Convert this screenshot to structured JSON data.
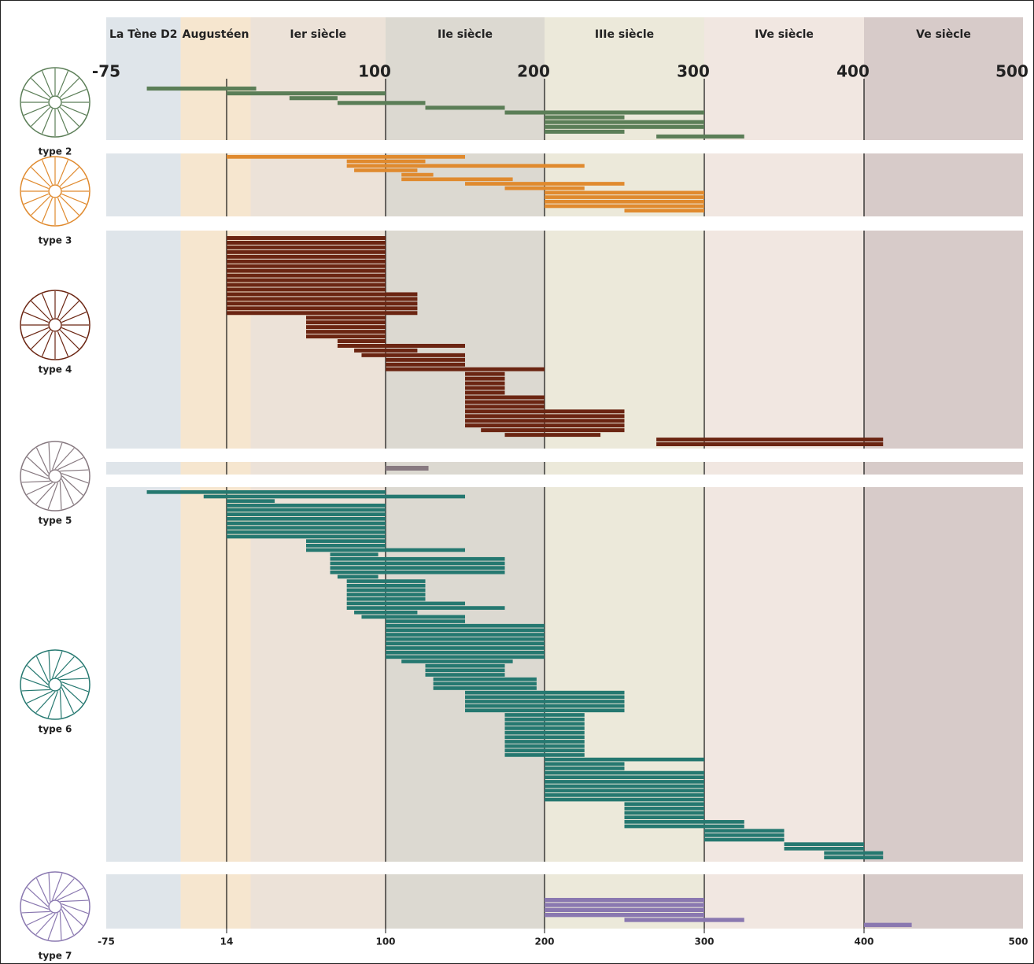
{
  "chart_data": {
    "type": "range-bar",
    "periods": [
      {
        "name": "La Tène D2",
        "start": -75,
        "end": -20,
        "color": "#dfe5ea"
      },
      {
        "name": "Augustéen",
        "start": -20,
        "end": 27,
        "color": "#f6e6cf"
      },
      {
        "name": "Ier siècle",
        "start": 27,
        "end": 100,
        "color": "#ece2d8"
      },
      {
        "name": "IIe siècle",
        "start": 100,
        "end": 200,
        "color": "#dcd9d1"
      },
      {
        "name": "IIIe siècle",
        "start": 200,
        "end": 300,
        "color": "#ece9da"
      },
      {
        "name": "IVe siècle",
        "start": 300,
        "end": 400,
        "color": "#f1e7e1"
      },
      {
        "name": "Ve siècle",
        "start": 400,
        "end": 500,
        "color": "#d7cbc9"
      }
    ],
    "xlim": [
      -75,
      500
    ],
    "xticks": [
      -75,
      14,
      100,
      200,
      300,
      400,
      500
    ],
    "top_xticks": [
      -75,
      100,
      200,
      300,
      400,
      500
    ],
    "series": [
      {
        "name": "type 2",
        "color": "#5b7e57",
        "values": [
          [
            -45,
            30
          ],
          [
            14,
            100
          ],
          [
            48,
            74
          ],
          [
            74,
            125
          ],
          [
            125,
            175
          ],
          [
            175,
            300
          ],
          [
            200,
            250
          ],
          [
            200,
            300
          ],
          [
            200,
            300
          ],
          [
            200,
            250
          ],
          [
            270,
            325
          ]
        ]
      },
      {
        "name": "type 3",
        "color": "#e08a2e",
        "values": [
          [
            14,
            150
          ],
          [
            79,
            125
          ],
          [
            79,
            225
          ],
          [
            83,
            120
          ],
          [
            110,
            130
          ],
          [
            110,
            180
          ],
          [
            150,
            250
          ],
          [
            175,
            225
          ],
          [
            200,
            300
          ],
          [
            200,
            300
          ],
          [
            200,
            300
          ],
          [
            200,
            300
          ],
          [
            250,
            300
          ]
        ]
      },
      {
        "name": "type 4",
        "color": "#6b2512",
        "values": [
          [
            14,
            100
          ],
          [
            14,
            100
          ],
          [
            14,
            100
          ],
          [
            14,
            100
          ],
          [
            14,
            100
          ],
          [
            14,
            100
          ],
          [
            14,
            100
          ],
          [
            14,
            100
          ],
          [
            14,
            100
          ],
          [
            14,
            100
          ],
          [
            14,
            100
          ],
          [
            14,
            100
          ],
          [
            14,
            120
          ],
          [
            14,
            120
          ],
          [
            14,
            120
          ],
          [
            14,
            120
          ],
          [
            14,
            120
          ],
          [
            57,
            100
          ],
          [
            57,
            100
          ],
          [
            57,
            100
          ],
          [
            57,
            100
          ],
          [
            57,
            100
          ],
          [
            74,
            100
          ],
          [
            74,
            150
          ],
          [
            83,
            120
          ],
          [
            87,
            150
          ],
          [
            100,
            150
          ],
          [
            100,
            150
          ],
          [
            100,
            200
          ],
          [
            150,
            175
          ],
          [
            150,
            175
          ],
          [
            150,
            175
          ],
          [
            150,
            175
          ],
          [
            150,
            175
          ],
          [
            150,
            200
          ],
          [
            150,
            200
          ],
          [
            150,
            200
          ],
          [
            150,
            250
          ],
          [
            150,
            250
          ],
          [
            150,
            250
          ],
          [
            150,
            250
          ],
          [
            160,
            250
          ],
          [
            175,
            235
          ],
          [
            270,
            412
          ],
          [
            270,
            412
          ]
        ]
      },
      {
        "name": "type 5",
        "color": "#877980",
        "values": [
          [
            100,
            127
          ]
        ]
      },
      {
        "name": "type 6",
        "color": "#257870",
        "values": [
          [
            -45,
            100
          ],
          [
            -3,
            150
          ],
          [
            14,
            40
          ],
          [
            14,
            100
          ],
          [
            14,
            100
          ],
          [
            14,
            100
          ],
          [
            14,
            100
          ],
          [
            14,
            100
          ],
          [
            14,
            100
          ],
          [
            14,
            100
          ],
          [
            14,
            100
          ],
          [
            57,
            100
          ],
          [
            57,
            100
          ],
          [
            57,
            150
          ],
          [
            70,
            96
          ],
          [
            70,
            175
          ],
          [
            70,
            175
          ],
          [
            70,
            175
          ],
          [
            70,
            175
          ],
          [
            74,
            96
          ],
          [
            79,
            125
          ],
          [
            79,
            125
          ],
          [
            79,
            125
          ],
          [
            79,
            125
          ],
          [
            79,
            125
          ],
          [
            79,
            150
          ],
          [
            79,
            175
          ],
          [
            83,
            120
          ],
          [
            87,
            150
          ],
          [
            100,
            150
          ],
          [
            100,
            200
          ],
          [
            100,
            200
          ],
          [
            100,
            200
          ],
          [
            100,
            200
          ],
          [
            100,
            200
          ],
          [
            100,
            200
          ],
          [
            100,
            200
          ],
          [
            100,
            200
          ],
          [
            110,
            180
          ],
          [
            125,
            175
          ],
          [
            125,
            175
          ],
          [
            125,
            175
          ],
          [
            130,
            195
          ],
          [
            130,
            195
          ],
          [
            130,
            195
          ],
          [
            150,
            250
          ],
          [
            150,
            250
          ],
          [
            150,
            250
          ],
          [
            150,
            250
          ],
          [
            150,
            250
          ],
          [
            175,
            225
          ],
          [
            175,
            225
          ],
          [
            175,
            225
          ],
          [
            175,
            225
          ],
          [
            175,
            225
          ],
          [
            175,
            225
          ],
          [
            175,
            225
          ],
          [
            175,
            225
          ],
          [
            175,
            225
          ],
          [
            175,
            225
          ],
          [
            200,
            300
          ],
          [
            200,
            250
          ],
          [
            200,
            250
          ],
          [
            200,
            300
          ],
          [
            200,
            300
          ],
          [
            200,
            300
          ],
          [
            200,
            300
          ],
          [
            200,
            300
          ],
          [
            200,
            300
          ],
          [
            200,
            300
          ],
          [
            250,
            300
          ],
          [
            250,
            300
          ],
          [
            250,
            300
          ],
          [
            250,
            300
          ],
          [
            250,
            325
          ],
          [
            250,
            325
          ],
          [
            300,
            350
          ],
          [
            300,
            350
          ],
          [
            300,
            350
          ],
          [
            350,
            400
          ],
          [
            350,
            400
          ],
          [
            375,
            412
          ],
          [
            375,
            412
          ]
        ]
      },
      {
        "name": "type 7",
        "color": "#8a78b0",
        "values": [
          [
            200,
            300
          ],
          [
            200,
            300
          ],
          [
            200,
            300
          ],
          [
            200,
            300
          ],
          [
            250,
            325
          ],
          [
            400,
            430
          ]
        ]
      }
    ]
  }
}
